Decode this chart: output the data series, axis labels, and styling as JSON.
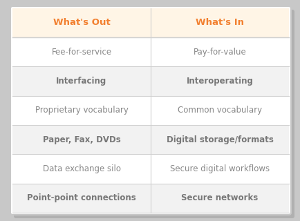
{
  "col1_header": "What's Out",
  "col2_header": "What's In",
  "rows": [
    [
      "Fee-for-service",
      "Pay-for-value"
    ],
    [
      "Interfacing",
      "Interoperating"
    ],
    [
      "Proprietary vocabulary",
      "Common vocabulary"
    ],
    [
      "Paper, Fax, DVDs",
      "Digital storage/formats"
    ],
    [
      "Data exchange silo",
      "Secure digital workflows"
    ],
    [
      "Point-point connections",
      "Secure networks"
    ]
  ],
  "header_bg": "#FFF5E6",
  "row_bg_even": "#FFFFFF",
  "row_bg_odd": "#F2F2F2",
  "header_color": "#F28030",
  "text_color": "#888888",
  "border_color": "#D0D0D0",
  "outer_border_color": "#C8C8C8",
  "shadow_color": "#B0B0B0",
  "fig_bg": "#C8C8C8",
  "table_bg": "#FFFFFF",
  "bold_rows": [
    1,
    3,
    5
  ],
  "bold_color": "#999999"
}
